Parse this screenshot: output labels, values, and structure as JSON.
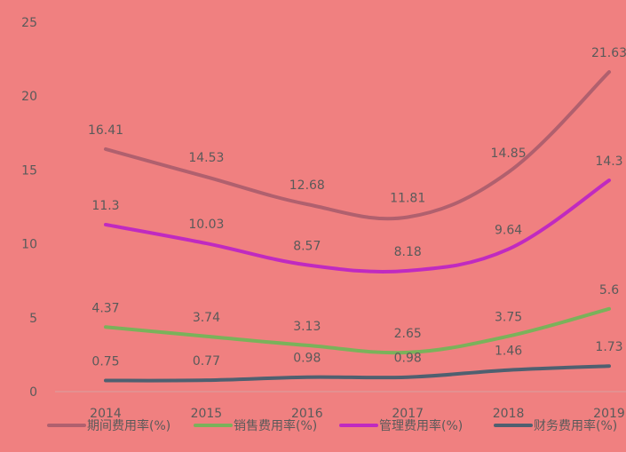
{
  "chart_data": {
    "type": "line",
    "categories": [
      "2014",
      "2015",
      "2016",
      "2017",
      "2018",
      "2019"
    ],
    "ylim": [
      0,
      25
    ],
    "yticks": [
      0,
      5,
      10,
      15,
      20,
      25
    ],
    "grid": false,
    "legend_position": "bottom",
    "series": [
      {
        "name": "期间费用率(%)",
        "color": "#b0606e",
        "values": [
          16.41,
          14.53,
          12.68,
          11.81,
          14.85,
          21.63
        ]
      },
      {
        "name": "销售费用率(%)",
        "color": "#7ab25a",
        "values": [
          4.37,
          3.74,
          3.13,
          2.65,
          3.75,
          5.6
        ]
      },
      {
        "name": "管理费用率(%)",
        "color": "#c02ac0",
        "values": [
          11.3,
          10.03,
          8.57,
          8.18,
          9.64,
          14.3
        ]
      },
      {
        "name": "财务费用率(%)",
        "color": "#4f6070",
        "values": [
          0.75,
          0.77,
          0.98,
          0.98,
          1.46,
          1.73
        ]
      }
    ]
  }
}
